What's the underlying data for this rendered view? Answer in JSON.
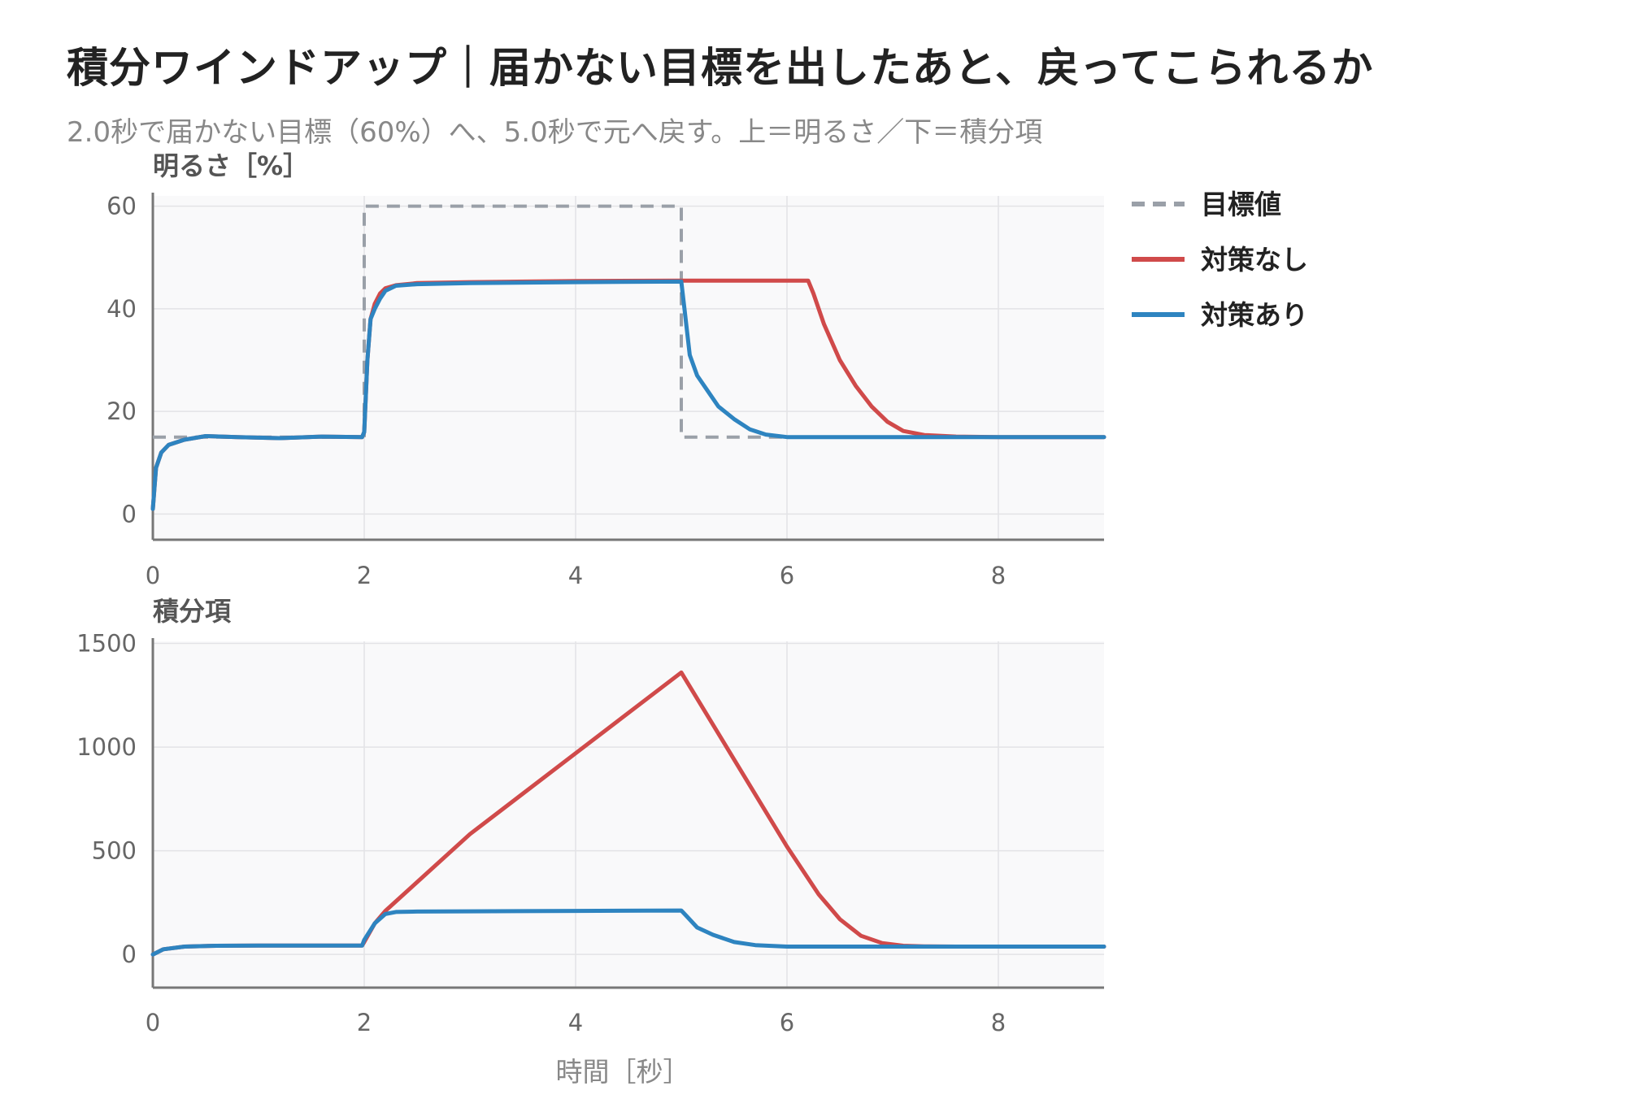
{
  "title": "積分ワインドアップ｜届かない目標を出したあと、戻ってこられるか",
  "subtitle": "2.0秒で届かない目標（60%）へ、5.0秒で元へ戻す。上＝明るさ／下＝積分項",
  "colors": {
    "target": "#9aa0a8",
    "no_fix": "#d04a4a",
    "with_fix": "#2e84c0",
    "panel_bg": "#f9f9fa",
    "grid": "#e3e3e6",
    "axis": "#777777"
  },
  "legend": [
    {
      "label": "目標値",
      "color_key": "target",
      "dashed": true
    },
    {
      "label": "対策なし",
      "color_key": "no_fix",
      "dashed": false
    },
    {
      "label": "対策あり",
      "color_key": "with_fix",
      "dashed": false
    }
  ],
  "chart_data": [
    {
      "type": "line",
      "ylabel": "明るさ［%］",
      "xlabel": "",
      "xlim": [
        0,
        9
      ],
      "ylim": [
        -5,
        62
      ],
      "xticks": [
        0,
        2,
        4,
        6,
        8
      ],
      "yticks": [
        0,
        20,
        40,
        60
      ],
      "grid": true,
      "legend_position": "right",
      "series": [
        {
          "name": "目標値",
          "color_key": "target",
          "dashed": true,
          "x": [
            0,
            2,
            2,
            5,
            5,
            9
          ],
          "y": [
            15,
            15,
            60,
            60,
            15,
            15
          ]
        },
        {
          "name": "対策なし",
          "color_key": "no_fix",
          "x": [
            0,
            0.03,
            0.08,
            0.15,
            0.3,
            0.5,
            0.8,
            1.2,
            1.6,
            1.98,
            2.0,
            2.03,
            2.06,
            2.1,
            2.15,
            2.2,
            2.3,
            2.5,
            3.0,
            4.0,
            5.0,
            5.5,
            6.0,
            6.2,
            6.25,
            6.35,
            6.5,
            6.65,
            6.8,
            6.95,
            7.1,
            7.3,
            7.6,
            8.0,
            8.5,
            9.0
          ],
          "y": [
            1,
            9,
            12,
            13.5,
            14.5,
            15.2,
            15.0,
            14.8,
            15.1,
            15,
            16,
            30,
            38,
            41,
            43,
            44,
            44.6,
            45.0,
            45.2,
            45.4,
            45.5,
            45.5,
            45.5,
            45.5,
            43,
            37,
            30,
            25,
            21,
            18,
            16.2,
            15.4,
            15.1,
            15.0,
            15.0,
            15.0
          ]
        },
        {
          "name": "対策あり",
          "color_key": "with_fix",
          "x": [
            0,
            0.03,
            0.08,
            0.15,
            0.3,
            0.5,
            0.8,
            1.2,
            1.6,
            1.98,
            2.0,
            2.03,
            2.06,
            2.1,
            2.15,
            2.2,
            2.3,
            2.5,
            3.0,
            4.0,
            5.0,
            5.03,
            5.08,
            5.15,
            5.25,
            5.35,
            5.5,
            5.65,
            5.8,
            6.0,
            6.5,
            7.0,
            8.0,
            9.0
          ],
          "y": [
            1,
            9,
            12,
            13.5,
            14.5,
            15.2,
            15.0,
            14.8,
            15.1,
            15,
            16,
            30,
            38,
            40,
            42,
            43.5,
            44.5,
            44.8,
            45.0,
            45.2,
            45.3,
            40,
            31,
            27,
            24,
            21,
            18.5,
            16.5,
            15.5,
            15.0,
            15.0,
            15.0,
            15.0,
            15.0
          ]
        }
      ]
    },
    {
      "type": "line",
      "ylabel": "積分項",
      "xlabel": "時間［秒］",
      "xlim": [
        0,
        9
      ],
      "ylim": [
        -160,
        1510
      ],
      "xticks": [
        0,
        2,
        4,
        6,
        8
      ],
      "yticks": [
        0,
        500,
        1000,
        1500
      ],
      "grid": true,
      "series": [
        {
          "name": "対策なし",
          "color_key": "no_fix",
          "x": [
            0,
            0.1,
            0.3,
            0.6,
            1.0,
            1.5,
            1.98,
            2.0,
            2.1,
            2.2,
            3.0,
            4.0,
            5.0,
            5.5,
            6.0,
            6.3,
            6.5,
            6.7,
            6.9,
            7.1,
            7.3,
            7.6,
            8.0,
            9.0
          ],
          "y": [
            0,
            25,
            38,
            42,
            43,
            43,
            43,
            60,
            150,
            210,
            580,
            970,
            1360,
            940,
            520,
            290,
            170,
            90,
            55,
            42,
            39,
            38,
            38,
            38
          ]
        },
        {
          "name": "対策あり",
          "color_key": "with_fix",
          "x": [
            0,
            0.1,
            0.3,
            0.6,
            1.0,
            1.5,
            1.98,
            2.0,
            2.1,
            2.2,
            2.3,
            2.5,
            3.0,
            4.0,
            5.0,
            5.05,
            5.15,
            5.3,
            5.5,
            5.7,
            6.0,
            6.5,
            7.0,
            8.0,
            9.0
          ],
          "y": [
            0,
            25,
            38,
            42,
            43,
            43,
            43,
            70,
            150,
            195,
            205,
            207,
            208,
            210,
            212,
            185,
            130,
            95,
            60,
            45,
            38,
            38,
            38,
            38,
            38
          ]
        }
      ]
    }
  ]
}
